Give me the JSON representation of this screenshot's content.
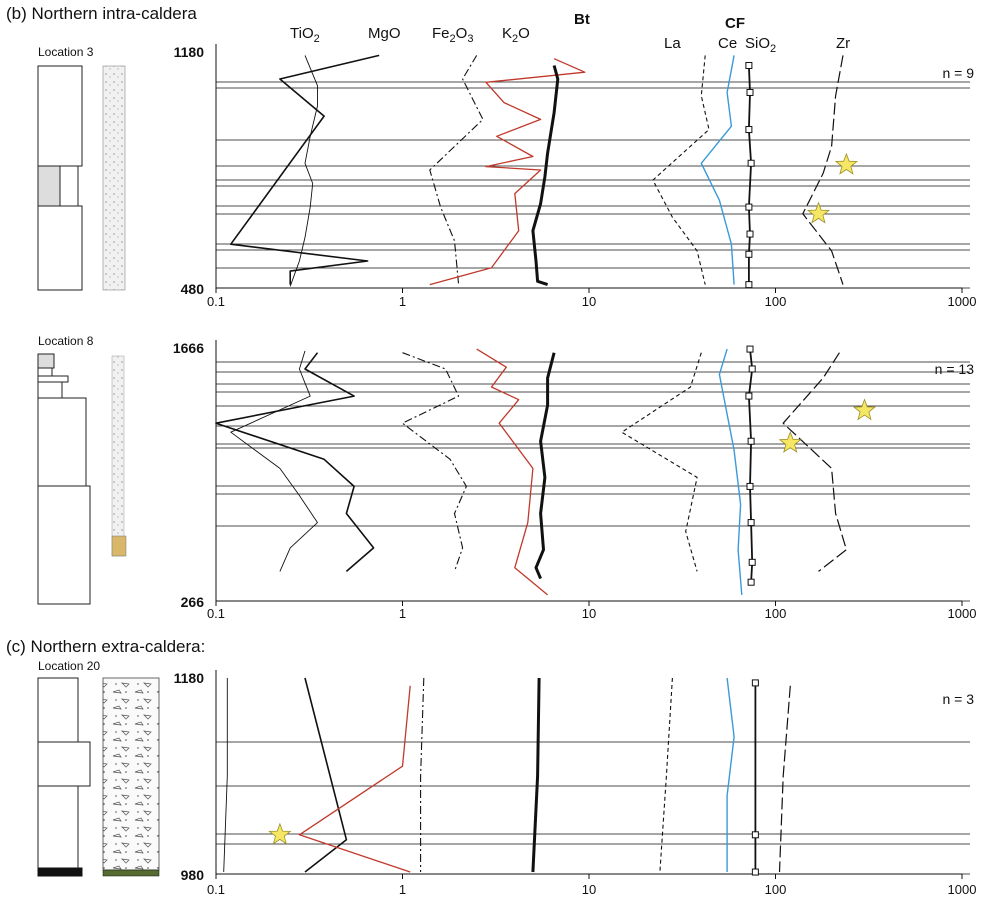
{
  "sections": {
    "b": "(b) Northern intra-caldera",
    "c": "(c) Northern extra-caldera:"
  },
  "panels": [
    {
      "location": "Location 3",
      "n_label": "n = 9",
      "y_top": "1180",
      "y_bottom": "480"
    },
    {
      "location": "Location 8",
      "n_label": "n = 13",
      "y_top": "1666",
      "y_bottom": "266"
    },
    {
      "location": "Location 20",
      "n_label": "n = 3",
      "y_top": "1180",
      "y_bottom": "980"
    }
  ],
  "x_ticks": [
    "0.1",
    "1",
    "10",
    "100",
    "1000"
  ],
  "series_labels": [
    "TiO2",
    "MgO",
    "Fe2O3",
    "K2O",
    "Bt",
    "La",
    "CF",
    "Ce",
    "SiO2",
    "Zr"
  ],
  "colors": {
    "K2O": "#c0392b",
    "Ce": "#3a9ad9",
    "lines": "#111111",
    "star": "#f5e663"
  },
  "chart_data": [
    {
      "type": "line",
      "title": "Location 3",
      "x_scale": "log",
      "xlim": [
        0.1,
        1000
      ],
      "ylim": [
        480,
        1180
      ],
      "y_ticks": [
        480,
        1180
      ],
      "n": 9,
      "series": [
        {
          "name": "TiO2",
          "x": [
            0.3,
            0.35,
            0.35,
            0.32,
            0.3,
            0.33,
            0.32,
            0.3,
            0.28,
            0.25
          ],
          "y": [
            1170,
            1080,
            1020,
            930,
            850,
            790,
            720,
            630,
            560,
            485
          ]
        },
        {
          "name": "MgO",
          "x": [
            0.75,
            0.22,
            0.38,
            0.12,
            0.65,
            0.25,
            0.25
          ],
          "y": [
            1170,
            1100,
            990,
            610,
            560,
            530,
            490
          ]
        },
        {
          "name": "Fe2O3",
          "x": [
            2.5,
            2.1,
            2.7,
            1.4,
            1.6,
            1.9,
            2.0
          ],
          "y": [
            1170,
            1100,
            980,
            830,
            720,
            620,
            490
          ]
        },
        {
          "name": "K2O",
          "x": [
            6.5,
            9.5,
            2.8,
            3.5,
            5.5,
            3.2,
            5.0,
            2.8,
            5.5,
            4.0,
            4.2,
            3.0,
            1.4
          ],
          "y": [
            1160,
            1120,
            1090,
            1030,
            980,
            930,
            870,
            840,
            830,
            760,
            650,
            540,
            490
          ]
        },
        {
          "name": "Bt",
          "x": [
            6.5,
            6.8,
            6.5,
            6.0,
            5.8,
            5.5,
            5.0,
            5.2,
            5.3,
            6.0
          ],
          "y": [
            1140,
            1100,
            1000,
            880,
            810,
            730,
            650,
            560,
            500,
            490
          ]
        },
        {
          "name": "La",
          "x": [
            42,
            40,
            44,
            22,
            28,
            38,
            42
          ],
          "y": [
            1170,
            1050,
            950,
            800,
            690,
            590,
            490
          ]
        },
        {
          "name": "Ce",
          "x": [
            60,
            55,
            58,
            40,
            50,
            58,
            60
          ],
          "y": [
            1170,
            1060,
            960,
            850,
            740,
            610,
            490
          ]
        },
        {
          "name": "SiO2",
          "x": [
            72,
            73,
            72,
            74,
            72,
            73,
            72,
            72
          ],
          "y": [
            1140,
            1060,
            950,
            850,
            720,
            640,
            580,
            490
          ]
        },
        {
          "name": "Zr",
          "x": [
            230,
            210,
            200,
            180,
            140,
            200,
            230
          ],
          "y": [
            1170,
            1050,
            900,
            820,
            700,
            590,
            490
          ]
        }
      ]
    },
    {
      "type": "line",
      "title": "Location 8",
      "x_scale": "log",
      "xlim": [
        0.1,
        1000
      ],
      "ylim": [
        266,
        1666
      ],
      "y_ticks": [
        266,
        1666
      ],
      "n": 13,
      "series": [
        {
          "name": "TiO2",
          "x": [
            0.3,
            0.28,
            0.32,
            0.12,
            0.22,
            0.28,
            0.35,
            0.25,
            0.22
          ],
          "y": [
            1650,
            1550,
            1400,
            1200,
            1000,
            850,
            700,
            560,
            430
          ]
        },
        {
          "name": "MgO",
          "x": [
            0.35,
            0.3,
            0.55,
            0.1,
            0.38,
            0.55,
            0.5,
            0.7,
            0.5
          ],
          "y": [
            1640,
            1550,
            1400,
            1250,
            1050,
            900,
            750,
            560,
            430
          ]
        },
        {
          "name": "Fe2O3",
          "x": [
            1.0,
            1.7,
            2.0,
            1.0,
            1.8,
            2.2,
            1.9,
            2.1,
            1.9
          ],
          "y": [
            1640,
            1550,
            1400,
            1250,
            1050,
            900,
            750,
            560,
            430
          ]
        },
        {
          "name": "K2O",
          "x": [
            2.5,
            3.6,
            3.0,
            4.2,
            3.3,
            5.0,
            4.7,
            4.0,
            6.0
          ],
          "y": [
            1660,
            1560,
            1450,
            1380,
            1250,
            1000,
            700,
            450,
            300
          ]
        },
        {
          "name": "Bt",
          "x": [
            6.5,
            6.0,
            6.0,
            5.5,
            5.8,
            5.5,
            5.7,
            5.2,
            5.5
          ],
          "y": [
            1640,
            1500,
            1350,
            1150,
            950,
            750,
            550,
            450,
            390
          ]
        },
        {
          "name": "La",
          "x": [
            40,
            35,
            15,
            38,
            33,
            38
          ],
          "y": [
            1640,
            1450,
            1200,
            950,
            650,
            430
          ]
        },
        {
          "name": "Ce",
          "x": [
            55,
            50,
            55,
            60,
            65,
            63,
            66
          ],
          "y": [
            1660,
            1520,
            1300,
            1100,
            800,
            550,
            300
          ]
        },
        {
          "name": "SiO2",
          "x": [
            73,
            75,
            72,
            74,
            73,
            74,
            75,
            74
          ],
          "y": [
            1660,
            1550,
            1400,
            1150,
            900,
            700,
            480,
            370
          ]
        },
        {
          "name": "Zr",
          "x": [
            220,
            180,
            110,
            200,
            210,
            240,
            170
          ],
          "y": [
            1640,
            1500,
            1250,
            1000,
            750,
            550,
            430
          ]
        }
      ]
    },
    {
      "type": "line",
      "title": "Location 20",
      "x_scale": "log",
      "xlim": [
        0.1,
        1000
      ],
      "ylim": [
        980,
        1180
      ],
      "y_ticks": [
        980,
        1180
      ],
      "n": 3,
      "series": [
        {
          "name": "TiO2",
          "x": [
            0.115,
            0.115,
            0.11
          ],
          "y": [
            1180,
            1080,
            982
          ]
        },
        {
          "name": "MgO",
          "x": [
            0.3,
            0.5,
            0.3
          ],
          "y": [
            1180,
            1015,
            982
          ]
        },
        {
          "name": "Fe2O3",
          "x": [
            1.3,
            1.25,
            1.25
          ],
          "y": [
            1180,
            1080,
            982
          ]
        },
        {
          "name": "K2O",
          "x": [
            1.1,
            1.0,
            0.28,
            1.1
          ],
          "y": [
            1172,
            1090,
            1020,
            982
          ]
        },
        {
          "name": "Bt",
          "x": [
            5.4,
            5.3,
            5.0
          ],
          "y": [
            1180,
            1080,
            982
          ]
        },
        {
          "name": "La",
          "x": [
            28,
            26,
            24
          ],
          "y": [
            1180,
            1080,
            982
          ]
        },
        {
          "name": "Ce",
          "x": [
            55,
            60,
            55,
            55
          ],
          "y": [
            1180,
            1120,
            1060,
            982
          ]
        },
        {
          "name": "SiO2",
          "x": [
            78,
            78,
            78
          ],
          "y": [
            1175,
            1020,
            982
          ]
        },
        {
          "name": "Zr",
          "x": [
            120,
            110,
            105
          ],
          "y": [
            1172,
            1080,
            982
          ]
        }
      ]
    }
  ]
}
